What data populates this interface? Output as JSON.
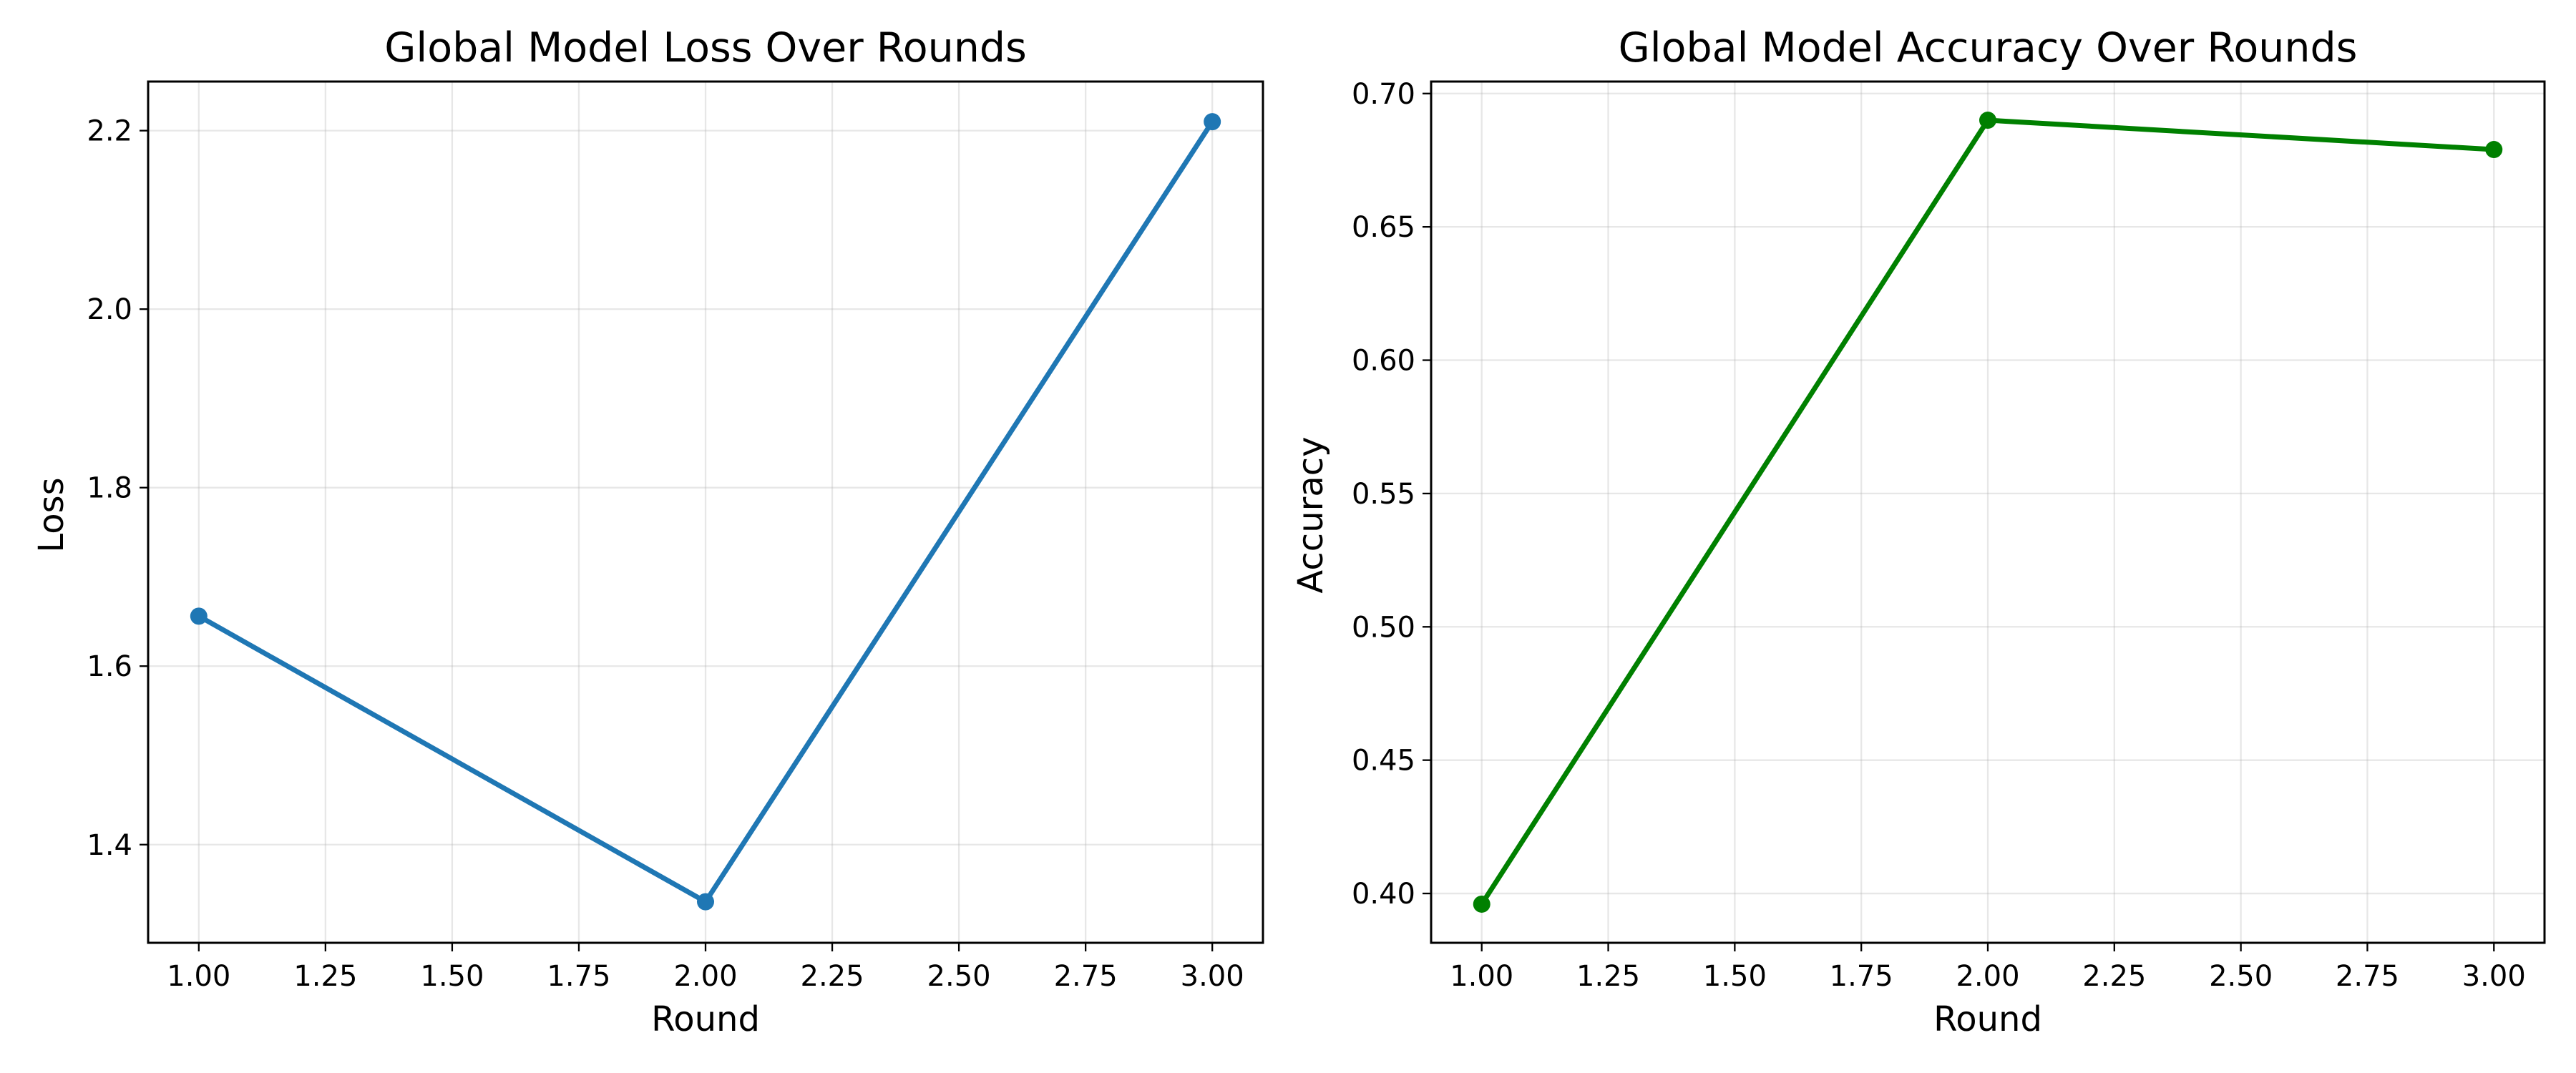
{
  "chart_data": [
    {
      "type": "line",
      "title": "Global Model Loss Over Rounds",
      "xlabel": "Round",
      "ylabel": "Loss",
      "x": [
        1.0,
        2.0,
        3.0
      ],
      "series": [
        {
          "values": [
            1.656,
            1.336,
            2.21
          ],
          "color": "#1f77b4"
        }
      ],
      "xlim": [
        0.9,
        3.1
      ],
      "ylim": [
        1.29,
        2.255
      ],
      "xticks": [
        1.0,
        1.25,
        1.5,
        1.75,
        2.0,
        2.25,
        2.5,
        2.75,
        3.0
      ],
      "xtick_labels": [
        "1.00",
        "1.25",
        "1.50",
        "1.75",
        "2.00",
        "2.25",
        "2.50",
        "2.75",
        "3.00"
      ],
      "yticks": [
        1.4,
        1.6,
        1.8,
        2.0,
        2.2
      ],
      "ytick_labels": [
        "1.4",
        "1.6",
        "1.8",
        "2.0",
        "2.2"
      ],
      "grid": true
    },
    {
      "type": "line",
      "title": "Global Model Accuracy Over Rounds",
      "xlabel": "Round",
      "ylabel": "Accuracy",
      "x": [
        1.0,
        2.0,
        3.0
      ],
      "series": [
        {
          "values": [
            0.396,
            0.69,
            0.679
          ],
          "color": "#008000"
        }
      ],
      "xlim": [
        0.9,
        3.1
      ],
      "ylim": [
        0.3815,
        0.7045
      ],
      "xticks": [
        1.0,
        1.25,
        1.5,
        1.75,
        2.0,
        2.25,
        2.5,
        2.75,
        3.0
      ],
      "xtick_labels": [
        "1.00",
        "1.25",
        "1.50",
        "1.75",
        "2.00",
        "2.25",
        "2.50",
        "2.75",
        "3.00"
      ],
      "yticks": [
        0.4,
        0.45,
        0.5,
        0.55,
        0.6,
        0.65,
        0.7
      ],
      "ytick_labels": [
        "0.40",
        "0.45",
        "0.50",
        "0.55",
        "0.60",
        "0.65",
        "0.70"
      ],
      "grid": true
    }
  ]
}
